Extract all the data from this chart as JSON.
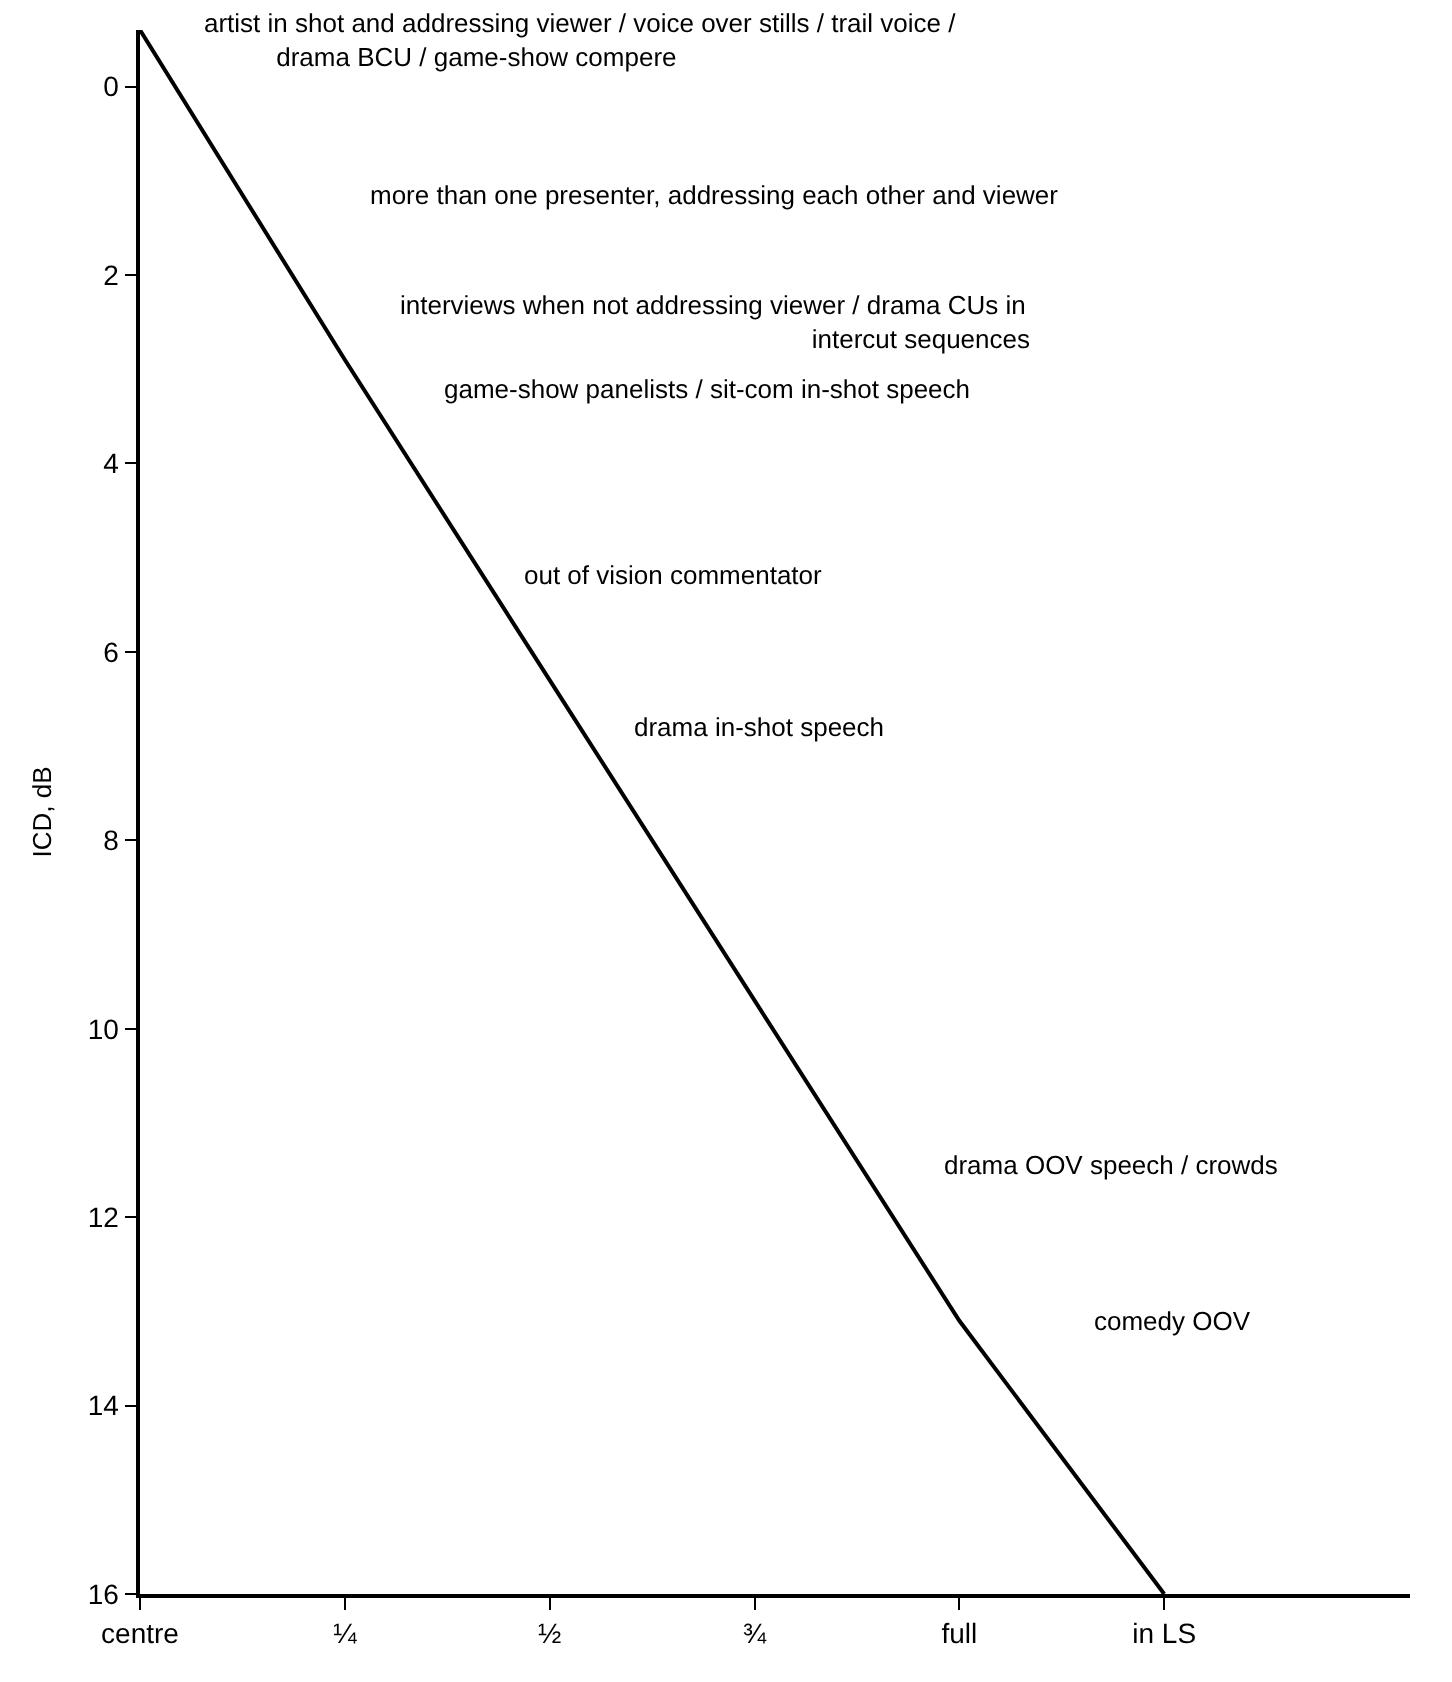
{
  "chart_data": {
    "type": "line",
    "ylabel": "ICD, dB",
    "categories": [
      "centre",
      "¼",
      "½",
      "¾",
      "full",
      "in LS"
    ],
    "series": [
      {
        "color": "#000000",
        "values": [
          -0.6,
          2.9,
          6.3,
          9.7,
          13.1,
          16
        ]
      }
    ],
    "ylim": [
      16,
      -0.6
    ],
    "yticks": [
      0,
      2,
      4,
      6,
      8,
      10,
      12,
      14,
      16
    ],
    "marker": "none",
    "line_style": "solid",
    "annotations": [
      "artist in shot and addressing viewer / voice over stills / trail voice /\n          drama BCU / game-show compere",
      "more than one presenter, addressing each other and viewer",
      "interviews when not addressing viewer / drama CUs in\n                                                         intercut sequences",
      "game-show panelists / sit-com in-shot speech",
      "out of vision commentator",
      "drama in-shot speech",
      "drama OOV speech / crowds",
      "comedy OOV"
    ]
  }
}
